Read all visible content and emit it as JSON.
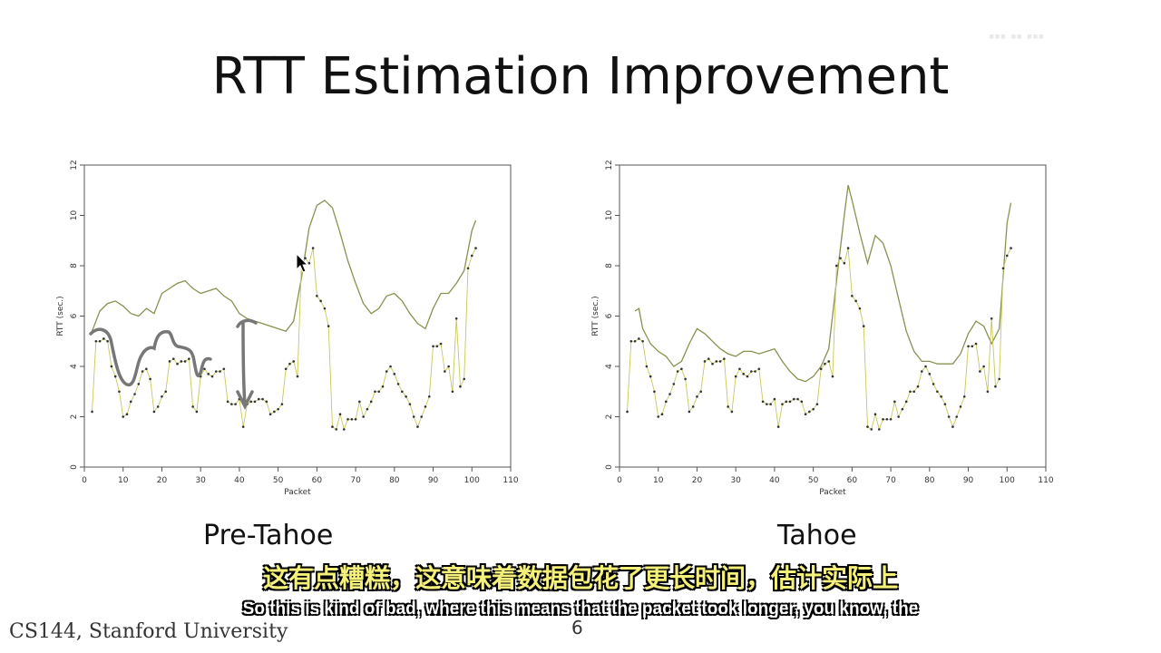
{
  "slide": {
    "title": "RTT Estimation Improvement",
    "footer": "CS144, Stanford University",
    "page_number": "6"
  },
  "subtitles": {
    "zh": "这有点糟糕，这意味着数据包花了更长时间，估计实际上",
    "en": "So this is kind of bad, where this means that the packet took longer, you know, the"
  },
  "chart_data": [
    {
      "type": "line",
      "label": "Pre-Tahoe",
      "xlabel": "Packet",
      "ylabel": "RTT (sec.)",
      "xlim": [
        0,
        110
      ],
      "ylim": [
        0,
        12
      ],
      "xticks": [
        "0",
        "10",
        "20",
        "30",
        "40",
        "50",
        "60",
        "70",
        "80",
        "90",
        "100",
        "110"
      ],
      "yticks": [
        "0",
        "2",
        "4",
        "6",
        "8",
        "10",
        "12"
      ],
      "series": [
        {
          "role": "estimate",
          "color": "#8a9150",
          "x": [
            2,
            4,
            6,
            8,
            10,
            12,
            14,
            16,
            18,
            20,
            22,
            24,
            26,
            28,
            30,
            32,
            34,
            36,
            38,
            40,
            42,
            44,
            46,
            48,
            50,
            52,
            54,
            56,
            58,
            60,
            62,
            64,
            66,
            68,
            70,
            72,
            74,
            76,
            78,
            80,
            82,
            84,
            86,
            88,
            90,
            92,
            94,
            96,
            98,
            100,
            101
          ],
          "y": [
            5.4,
            6.2,
            6.5,
            6.6,
            6.4,
            6.1,
            6.0,
            6.3,
            6.1,
            6.9,
            7.1,
            7.3,
            7.4,
            7.1,
            6.9,
            7.0,
            7.1,
            6.8,
            6.6,
            6.1,
            5.9,
            5.8,
            5.7,
            5.6,
            5.5,
            5.4,
            5.8,
            7.5,
            9.5,
            10.4,
            10.6,
            10.3,
            9.3,
            8.2,
            7.3,
            6.5,
            6.1,
            6.3,
            6.8,
            6.9,
            6.6,
            6.1,
            5.7,
            5.5,
            6.3,
            6.9,
            6.9,
            7.3,
            7.8,
            9.4,
            9.8
          ]
        },
        {
          "role": "sample",
          "color": "#c8c85a",
          "x": [
            2,
            3,
            4,
            5,
            6,
            7,
            8,
            9,
            10,
            11,
            12,
            13,
            14,
            15,
            16,
            17,
            18,
            19,
            20,
            21,
            22,
            23,
            24,
            25,
            26,
            27,
            28,
            29,
            30,
            31,
            32,
            33,
            34,
            35,
            36,
            37,
            38,
            39,
            40,
            41,
            42,
            43,
            44,
            45,
            46,
            47,
            48,
            49,
            50,
            51,
            52,
            53,
            54,
            55,
            56,
            57,
            58,
            59,
            60,
            61,
            62,
            63,
            64,
            65,
            66,
            67,
            68,
            69,
            70,
            71,
            72,
            73,
            74,
            75,
            76,
            77,
            78,
            79,
            80,
            81,
            82,
            83,
            84,
            85,
            86,
            87,
            88,
            89,
            90,
            91,
            92,
            93,
            94,
            95,
            96,
            97,
            98,
            99,
            100,
            101
          ],
          "y": [
            2.2,
            5.0,
            5.0,
            5.1,
            5.0,
            4.0,
            3.6,
            3.0,
            2.0,
            2.1,
            2.6,
            2.9,
            3.3,
            3.8,
            3.9,
            3.5,
            2.2,
            2.4,
            2.8,
            3.0,
            4.2,
            4.3,
            4.1,
            4.2,
            4.2,
            4.3,
            2.4,
            2.2,
            3.6,
            3.9,
            3.7,
            3.6,
            3.8,
            3.8,
            3.9,
            2.6,
            2.5,
            2.5,
            2.7,
            1.6,
            2.5,
            2.6,
            2.6,
            2.7,
            2.7,
            2.6,
            2.1,
            2.2,
            2.3,
            2.5,
            3.9,
            4.1,
            4.2,
            3.6,
            8.0,
            8.3,
            8.1,
            8.7,
            6.8,
            6.6,
            6.3,
            5.6,
            1.6,
            1.5,
            2.1,
            1.5,
            1.9,
            1.9,
            1.9,
            2.6,
            2.0,
            2.3,
            2.6,
            3.0,
            3.0,
            3.2,
            3.8,
            4.0,
            3.7,
            3.3,
            3.0,
            2.8,
            2.5,
            2.0,
            1.6,
            2.0,
            2.4,
            2.8,
            4.8,
            4.8,
            4.9,
            3.8,
            4.0,
            3.0,
            5.9,
            3.2,
            3.5,
            7.9,
            8.4,
            8.7
          ]
        }
      ]
    },
    {
      "type": "line",
      "label": "Tahoe",
      "xlabel": "Packet",
      "ylabel": "RTT (sec.)",
      "xlim": [
        0,
        110
      ],
      "ylim": [
        0,
        12
      ],
      "xticks": [
        "0",
        "10",
        "20",
        "30",
        "40",
        "50",
        "60",
        "70",
        "80",
        "90",
        "100",
        "110"
      ],
      "yticks": [
        "0",
        "2",
        "4",
        "6",
        "8",
        "10",
        "12"
      ],
      "series": [
        {
          "role": "estimate",
          "color": "#8a9150",
          "x": [
            4,
            5,
            6,
            8,
            10,
            12,
            14,
            16,
            18,
            20,
            22,
            24,
            26,
            28,
            30,
            32,
            34,
            36,
            38,
            40,
            42,
            44,
            46,
            48,
            50,
            52,
            54,
            56,
            58,
            59,
            60,
            62,
            64,
            66,
            68,
            70,
            72,
            74,
            76,
            78,
            80,
            82,
            84,
            86,
            88,
            90,
            92,
            94,
            96,
            98,
            100,
            101
          ],
          "y": [
            6.2,
            6.3,
            5.5,
            4.9,
            4.6,
            4.4,
            4.0,
            4.2,
            4.9,
            5.5,
            5.3,
            5.0,
            4.7,
            4.5,
            4.4,
            4.6,
            4.6,
            4.5,
            4.6,
            4.7,
            4.2,
            3.8,
            3.5,
            3.4,
            3.6,
            4.0,
            4.7,
            7.4,
            10.0,
            11.2,
            10.6,
            9.3,
            8.1,
            9.2,
            8.9,
            8.0,
            6.7,
            5.4,
            4.6,
            4.2,
            4.2,
            4.1,
            4.1,
            4.1,
            4.5,
            5.3,
            5.8,
            5.6,
            4.9,
            5.5,
            9.7,
            10.5
          ]
        },
        {
          "role": "sample",
          "color": "#c8c85a",
          "x": [
            2,
            3,
            4,
            5,
            6,
            7,
            8,
            9,
            10,
            11,
            12,
            13,
            14,
            15,
            16,
            17,
            18,
            19,
            20,
            21,
            22,
            23,
            24,
            25,
            26,
            27,
            28,
            29,
            30,
            31,
            32,
            33,
            34,
            35,
            36,
            37,
            38,
            39,
            40,
            41,
            42,
            43,
            44,
            45,
            46,
            47,
            48,
            49,
            50,
            51,
            52,
            53,
            54,
            55,
            56,
            57,
            58,
            59,
            60,
            61,
            62,
            63,
            64,
            65,
            66,
            67,
            68,
            69,
            70,
            71,
            72,
            73,
            74,
            75,
            76,
            77,
            78,
            79,
            80,
            81,
            82,
            83,
            84,
            85,
            86,
            87,
            88,
            89,
            90,
            91,
            92,
            93,
            94,
            95,
            96,
            97,
            98,
            99,
            100,
            101
          ],
          "y": [
            2.2,
            5.0,
            5.0,
            5.1,
            5.0,
            4.0,
            3.6,
            3.0,
            2.0,
            2.1,
            2.6,
            2.9,
            3.3,
            3.8,
            3.9,
            3.5,
            2.2,
            2.4,
            2.8,
            3.0,
            4.2,
            4.3,
            4.1,
            4.2,
            4.2,
            4.3,
            2.4,
            2.2,
            3.6,
            3.9,
            3.7,
            3.6,
            3.8,
            3.8,
            3.9,
            2.6,
            2.5,
            2.5,
            2.7,
            1.6,
            2.5,
            2.6,
            2.6,
            2.7,
            2.7,
            2.6,
            2.1,
            2.2,
            2.3,
            2.5,
            3.9,
            4.1,
            4.2,
            3.6,
            8.0,
            8.3,
            8.1,
            8.7,
            6.8,
            6.6,
            6.3,
            5.6,
            1.6,
            1.5,
            2.1,
            1.5,
            1.9,
            1.9,
            1.9,
            2.6,
            2.0,
            2.3,
            2.6,
            3.0,
            3.0,
            3.2,
            3.8,
            4.0,
            3.7,
            3.3,
            3.0,
            2.8,
            2.5,
            2.0,
            1.6,
            2.0,
            2.4,
            2.8,
            4.8,
            4.8,
            4.9,
            3.8,
            4.0,
            3.0,
            5.9,
            3.2,
            3.5,
            7.9,
            8.4,
            8.7
          ]
        }
      ]
    }
  ]
}
